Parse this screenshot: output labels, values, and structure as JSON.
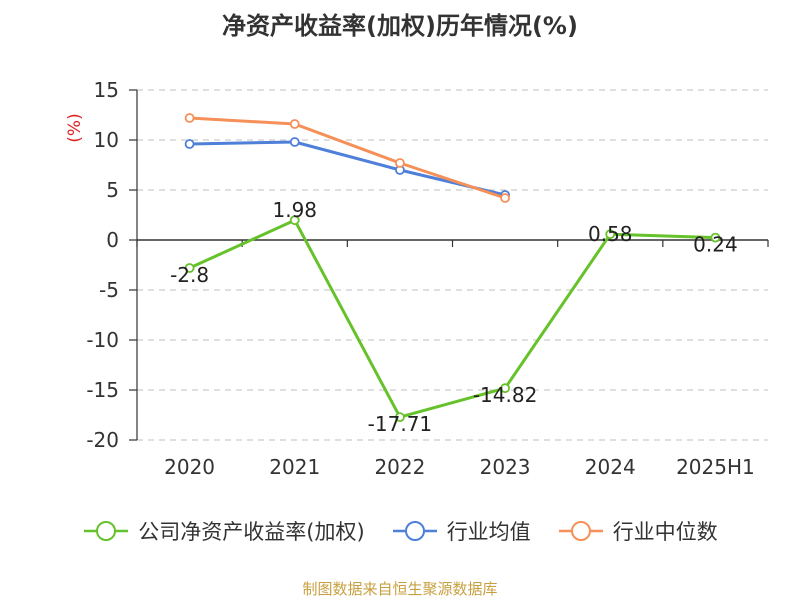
{
  "title": "净资产收益率(加权)历年情况(%)",
  "source_note": "制图数据来自恒生聚源数据库",
  "chart_data": {
    "type": "line",
    "title": "净资产收益率(加权)历年情况(%)",
    "ylabel": "(%)",
    "xlabel": "",
    "categories": [
      "2020",
      "2021",
      "2022",
      "2023",
      "2024",
      "2025H1"
    ],
    "ylim": [
      -20,
      15
    ],
    "yticks": [
      15,
      10,
      5,
      0,
      -5,
      -10,
      -15,
      -20
    ],
    "grid": true,
    "legend_position": "bottom",
    "series": [
      {
        "name": "公司净资产收益率(加权)",
        "color": "#66c22a",
        "values": [
          -2.8,
          1.98,
          -17.71,
          -14.82,
          0.58,
          0.24
        ],
        "labels": [
          "-2.8",
          "1.98",
          "-17.71",
          "-14.82",
          "0.58",
          "0.24"
        ]
      },
      {
        "name": "行业均值",
        "color": "#4e7fd9",
        "values": [
          9.6,
          9.8,
          7.0,
          4.5,
          null,
          null
        ]
      },
      {
        "name": "行业中位数",
        "color": "#f59058",
        "values": [
          12.2,
          11.6,
          7.7,
          4.2,
          null,
          null
        ]
      }
    ]
  }
}
